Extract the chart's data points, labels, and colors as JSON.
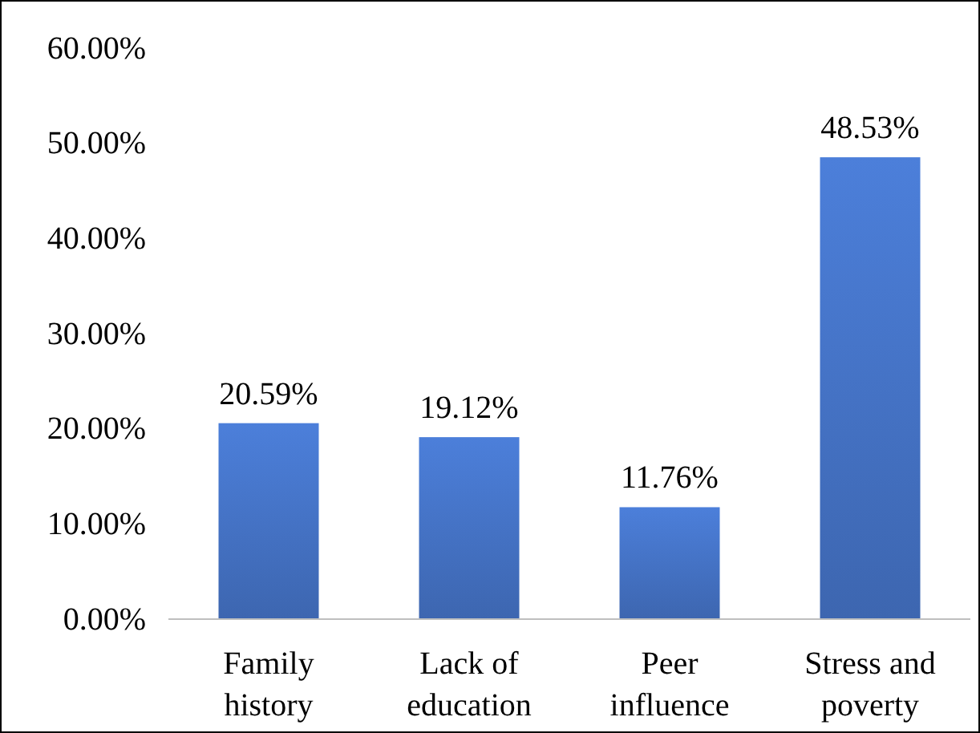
{
  "chart_data": {
    "type": "bar",
    "categories": [
      "Family history",
      "Lack of education",
      "Peer influence",
      "Stress and poverty"
    ],
    "values": [
      20.59,
      19.12,
      11.76,
      48.53
    ],
    "value_labels": [
      "20.59%",
      "19.12%",
      "11.76%",
      "48.53%"
    ],
    "color": "#4472c4",
    "ylim": [
      0,
      60
    ],
    "yticks": [
      {
        "value": 0,
        "label": "0.00%"
      },
      {
        "value": 10,
        "label": "10.00%"
      },
      {
        "value": 20,
        "label": "20.00%"
      },
      {
        "value": 30,
        "label": "30.00%"
      },
      {
        "value": 40,
        "label": "40.00%"
      },
      {
        "value": 50,
        "label": "50.00%"
      },
      {
        "value": 60,
        "label": "60.00%"
      }
    ],
    "grid": false
  }
}
